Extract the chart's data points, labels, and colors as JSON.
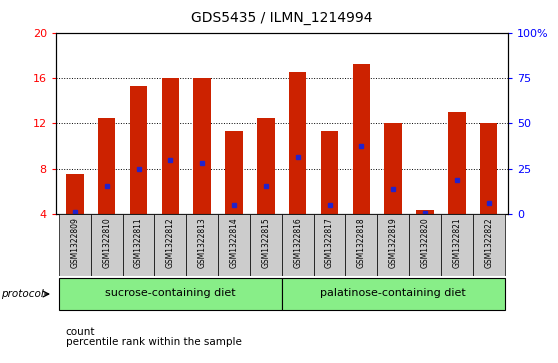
{
  "title": "GDS5435 / ILMN_1214994",
  "samples": [
    "GSM1322809",
    "GSM1322810",
    "GSM1322811",
    "GSM1322812",
    "GSM1322813",
    "GSM1322814",
    "GSM1322815",
    "GSM1322816",
    "GSM1322817",
    "GSM1322818",
    "GSM1322819",
    "GSM1322820",
    "GSM1322821",
    "GSM1322822"
  ],
  "count_values": [
    7.5,
    12.5,
    15.3,
    16.0,
    16.0,
    11.3,
    12.5,
    16.5,
    11.3,
    17.2,
    12.0,
    4.4,
    13.0,
    12.0
  ],
  "percentile_values": [
    4.2,
    6.5,
    8.0,
    8.8,
    8.5,
    4.8,
    6.5,
    9.0,
    4.8,
    10.0,
    6.2,
    4.1,
    7.0,
    5.0
  ],
  "ymin": 4,
  "ymax": 20,
  "yticks": [
    4,
    8,
    12,
    16,
    20
  ],
  "bar_color": "#cc2200",
  "dot_color": "#2222cc",
  "plot_bg_color": "#ffffff",
  "group1_label": "sucrose-containing diet",
  "group2_label": "palatinose-containing diet",
  "group1_indices": [
    0,
    1,
    2,
    3,
    4,
    5,
    6
  ],
  "group2_indices": [
    7,
    8,
    9,
    10,
    11,
    12,
    13
  ],
  "group_bg_color": "#88ee88",
  "tick_bg_color": "#cccccc"
}
